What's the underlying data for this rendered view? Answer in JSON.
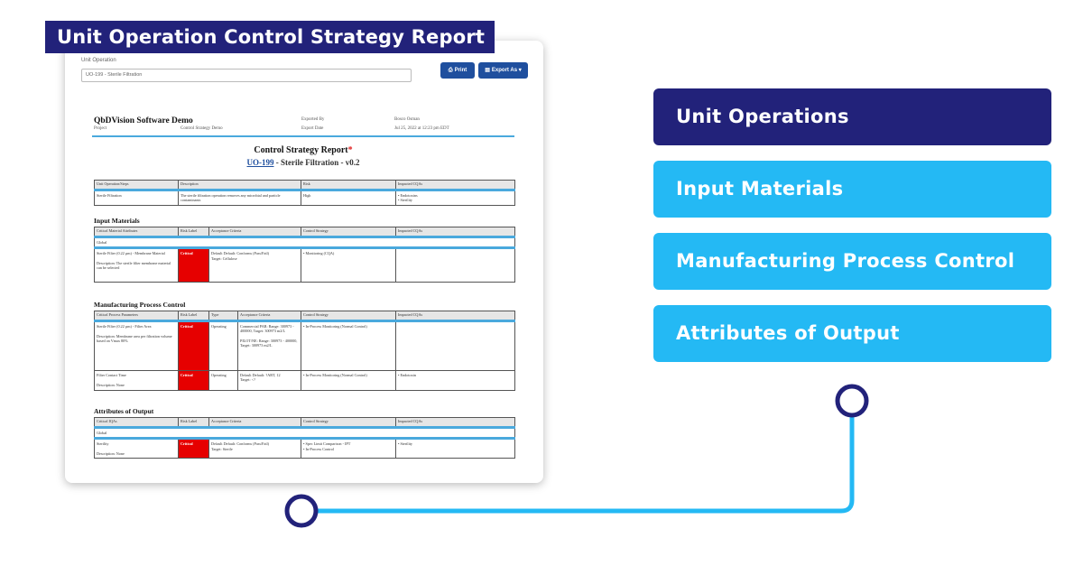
{
  "banner": {
    "title": "Unit Operation Control Strategy Report"
  },
  "report": {
    "unit_operation_label": "Unit Operation",
    "unit_operation_value": "UO-199 - Sterile Filtration",
    "print_label": "Print",
    "export_label": "Export As",
    "print_icon": "printer-icon",
    "export_icon": "file-icon",
    "header": {
      "company": "QbDVision Software Demo",
      "project_label": "Project",
      "project_value": "Control Strategy Demo",
      "exported_by_label": "Exported By",
      "exported_by_value": "Bosco Osman",
      "export_date_label": "Export Date",
      "export_date_value": "Jul 25, 2022 at 12:23 pm EDT"
    },
    "title": "Control Strategy Report",
    "title_star": "*",
    "subtitle_link": "UO-199",
    "subtitle_rest": " - Sterile Filtration - v0.2",
    "overview": {
      "columns": [
        "Unit Operation/Steps",
        "Description",
        "Risk",
        "Impacted CQAs"
      ],
      "row": [
        "Sterile Filtration",
        "The sterile filtration operation removes any microbial and particle contaminants",
        "High",
        "• Endotoxins\n• Sterility"
      ]
    },
    "input_materials": {
      "heading": "Input Materials",
      "columns": [
        "Critical Material Attributes",
        "Risk Label",
        "Acceptance Criteria",
        "Control Strategy",
        "Impacted CQAs"
      ],
      "group": "Global",
      "row": [
        "Sterile Filter (0.22 µm) - Membrane Material\n\nDescription: The sterile filter membrane material can be selected",
        "Critical",
        "Default Default: Conforms (Pass/Fail)\nTarget: Cellulose",
        "• Monitoring (CQA)",
        ""
      ]
    },
    "mpc": {
      "heading": "Manufacturing Process Control",
      "columns": [
        "Critical Process Parameters",
        "Risk Label",
        "Type",
        "Acceptance Criteria",
        "Control Strategy",
        "Impacted CQAs"
      ],
      "rows": [
        [
          "Sterile Filter (0.22 µm) - Filter Area\n\nDescription: Membrane area per filtration volume based on Vmax 80%",
          "Critical",
          "Operating",
          "Commercial PAR: Range: 300973 - 400000, Target: 300973 m2/L\n\nPILOT/NE: Range: 300973 - 400000, Target: 300973 m2/L",
          "• In-Process Monitoring (Normal Control)",
          ""
        ],
        [
          "Filter Contact Time\n\nDescription: None",
          "Critical",
          "Operating",
          "Default Default: ?ABT, 12\nTarget: <?",
          "• In-Process Monitoring (Normal Control)",
          "• Endotoxin"
        ]
      ]
    },
    "outputs": {
      "heading": "Attributes of Output",
      "columns": [
        "Critical IQAs",
        "Risk Label",
        "Acceptance Criteria",
        "Control Strategy",
        "Impacted CQAs"
      ],
      "group": "Global",
      "row": [
        "Sterility\n\nDescription: None",
        "Critical",
        "Default Default: Conforms (Pass/Fail)\nTarget: Sterile",
        "• Spec Limit Comparison - IPT\n• In-Process Control",
        "• Sterility"
      ]
    }
  },
  "menu": {
    "items": [
      {
        "label": "Unit Operations",
        "active": true
      },
      {
        "label": "Input Materials",
        "active": false
      },
      {
        "label": "Manufacturing Process Control",
        "active": false
      },
      {
        "label": "Attributes of Output",
        "active": false
      }
    ]
  },
  "colors": {
    "navy": "#22227a",
    "sky": "#24b9f4",
    "critical": "#e60000",
    "accent_rule": "#4aa9dd"
  }
}
